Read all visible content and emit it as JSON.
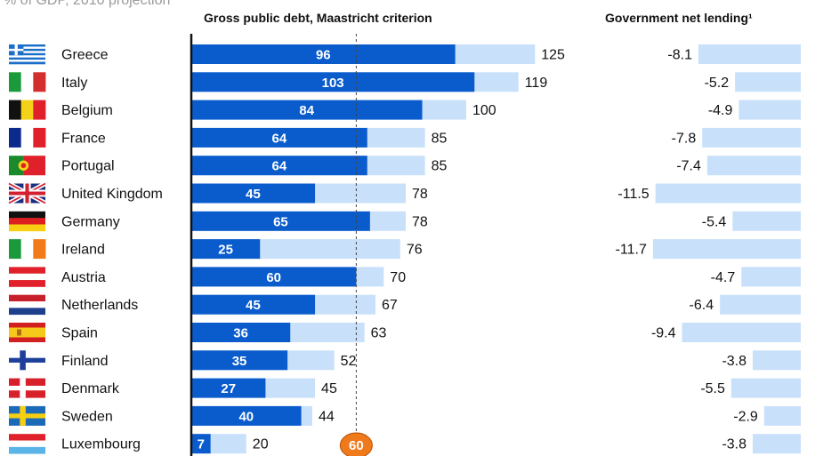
{
  "subtitle": "% of GDP, 2010 projection",
  "headers": {
    "debt": "Gross public debt, Maastricht criterion",
    "lending": "Government net lending¹"
  },
  "threshold_label": "60",
  "colors": {
    "dark_bar": "#0a5ccc",
    "light_bar": "#c8e0fa",
    "marker": "#ef7a1c",
    "dotted_line": "#444444"
  },
  "chart_data": [
    {
      "type": "bar",
      "title": "Gross public debt, Maastricht criterion",
      "categories": [
        "Greece",
        "Italy",
        "Belgium",
        "France",
        "Portugal",
        "United Kingdom",
        "Germany",
        "Ireland",
        "Austria",
        "Netherlands",
        "Spain",
        "Finland",
        "Denmark",
        "Sweden",
        "Luxembourg"
      ],
      "series": [
        {
          "values": [
            96,
            103,
            84,
            64,
            64,
            45,
            65,
            25,
            60,
            45,
            36,
            35,
            27,
            40,
            7
          ]
        },
        {
          "values": [
            125,
            119,
            100,
            85,
            85,
            78,
            78,
            76,
            70,
            67,
            63,
            52,
            45,
            44,
            20
          ]
        }
      ],
      "reference_line": 60,
      "xlim": [
        0,
        130
      ],
      "grid": false
    },
    {
      "type": "bar",
      "title": "Government net lending¹",
      "categories": [
        "Greece",
        "Italy",
        "Belgium",
        "France",
        "Portugal",
        "United Kingdom",
        "Germany",
        "Ireland",
        "Austria",
        "Netherlands",
        "Spain",
        "Finland",
        "Denmark",
        "Sweden",
        "Luxembourg"
      ],
      "values": [
        -8.1,
        -5.2,
        -4.9,
        -7.8,
        -7.4,
        -11.5,
        -5.4,
        -11.7,
        -4.7,
        -6.4,
        -9.4,
        -3.8,
        -5.5,
        -2.9,
        -3.8
      ],
      "xlim": [
        -12,
        0
      ],
      "grid": false
    }
  ],
  "flags": [
    {
      "country": "Greece",
      "pattern": "greece"
    },
    {
      "country": "Italy",
      "pattern": "vertical",
      "colors": [
        "#1a9a3a",
        "#ffffff",
        "#d32f2f"
      ]
    },
    {
      "country": "Belgium",
      "pattern": "vertical",
      "colors": [
        "#111111",
        "#f5d21a",
        "#e0202a"
      ]
    },
    {
      "country": "France",
      "pattern": "vertical",
      "colors": [
        "#0b2a8c",
        "#ffffff",
        "#e0202a"
      ]
    },
    {
      "country": "Portugal",
      "pattern": "portugal",
      "colors": [
        "#1a8a2a",
        "#e0202a",
        "#f5d21a"
      ]
    },
    {
      "country": "United Kingdom",
      "pattern": "uk",
      "colors": [
        "#1b2f7e",
        "#ffffff",
        "#d32030"
      ]
    },
    {
      "country": "Germany",
      "pattern": "horizontal",
      "colors": [
        "#111111",
        "#dd1f1f",
        "#f7cf13"
      ]
    },
    {
      "country": "Ireland",
      "pattern": "vertical",
      "colors": [
        "#1a9a3a",
        "#ffffff",
        "#f27a1a"
      ]
    },
    {
      "country": "Austria",
      "pattern": "horizontal",
      "colors": [
        "#e0202a",
        "#ffffff",
        "#e0202a"
      ]
    },
    {
      "country": "Netherlands",
      "pattern": "horizontal",
      "colors": [
        "#c8202a",
        "#ffffff",
        "#1e3f8c"
      ]
    },
    {
      "country": "Spain",
      "pattern": "spain",
      "colors": [
        "#d22020",
        "#f6c81a",
        "#b06a1a"
      ]
    },
    {
      "country": "Finland",
      "pattern": "nordic",
      "colors": [
        "#ffffff",
        "#1e3f9a"
      ]
    },
    {
      "country": "Denmark",
      "pattern": "nordic",
      "colors": [
        "#d8202a",
        "#ffffff"
      ]
    },
    {
      "country": "Sweden",
      "pattern": "nordic",
      "colors": [
        "#1a6ab8",
        "#f6cf13"
      ]
    },
    {
      "country": "Luxembourg",
      "pattern": "horizontal",
      "colors": [
        "#e0202a",
        "#ffffff",
        "#5ab4e8"
      ]
    }
  ]
}
